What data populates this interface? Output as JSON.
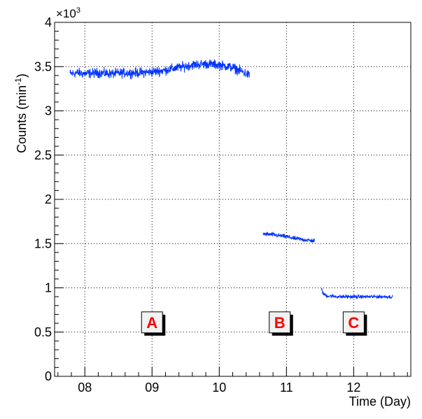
{
  "chart_data": {
    "type": "line",
    "title": "",
    "xlabel": "Time (Day)",
    "ylabel": "Counts (min-1)",
    "ylabel_parts": {
      "base": "Counts (min",
      "sup": "-1",
      "tail": ")"
    },
    "y_multiplier": {
      "base": "×10",
      "exp": "3"
    },
    "xlim": [
      7.55,
      12.85
    ],
    "ylim": [
      0,
      4
    ],
    "x_ticks": [
      {
        "value": 8,
        "label": "08"
      },
      {
        "value": 9,
        "label": "09"
      },
      {
        "value": 10,
        "label": "10"
      },
      {
        "value": 11,
        "label": "11"
      },
      {
        "value": 12,
        "label": "12"
      }
    ],
    "y_ticks": [
      {
        "value": 0,
        "label": "0"
      },
      {
        "value": 0.5,
        "label": "0.5"
      },
      {
        "value": 1,
        "label": "1"
      },
      {
        "value": 1.5,
        "label": "1.5"
      },
      {
        "value": 2,
        "label": "2"
      },
      {
        "value": 2.5,
        "label": "2.5"
      },
      {
        "value": 3,
        "label": "3"
      },
      {
        "value": 3.5,
        "label": "3.5"
      },
      {
        "value": 4,
        "label": "4"
      }
    ],
    "grid": true,
    "series_color": "#0033ff",
    "series": [
      {
        "x": [
          7.78,
          7.9,
          8.0,
          8.2,
          8.4,
          8.6,
          8.8,
          9.0,
          9.2,
          9.4,
          9.6,
          9.8,
          10.0,
          10.2,
          10.35,
          10.45
        ],
        "y": [
          3.42,
          3.43,
          3.42,
          3.43,
          3.42,
          3.43,
          3.43,
          3.44,
          3.46,
          3.49,
          3.52,
          3.53,
          3.52,
          3.49,
          3.44,
          3.4
        ],
        "noise": 0.08
      },
      {
        "x": [
          10.65,
          10.8,
          10.9,
          11.0,
          11.1,
          11.2,
          11.3,
          11.42
        ],
        "y": [
          1.61,
          1.6,
          1.59,
          1.58,
          1.56,
          1.55,
          1.54,
          1.53
        ],
        "noise": 0.035
      },
      {
        "x": [
          11.52,
          11.55,
          11.6,
          11.8,
          12.0,
          12.2,
          12.4,
          12.58
        ],
        "y": [
          0.99,
          0.93,
          0.91,
          0.9,
          0.9,
          0.9,
          0.9,
          0.9
        ],
        "noise": 0.03
      }
    ],
    "annotations": [
      {
        "text": "A",
        "x": 9.0,
        "y": 0.61
      },
      {
        "text": "B",
        "x": 10.9,
        "y": 0.61
      },
      {
        "text": "C",
        "x": 12.0,
        "y": 0.61
      }
    ]
  }
}
